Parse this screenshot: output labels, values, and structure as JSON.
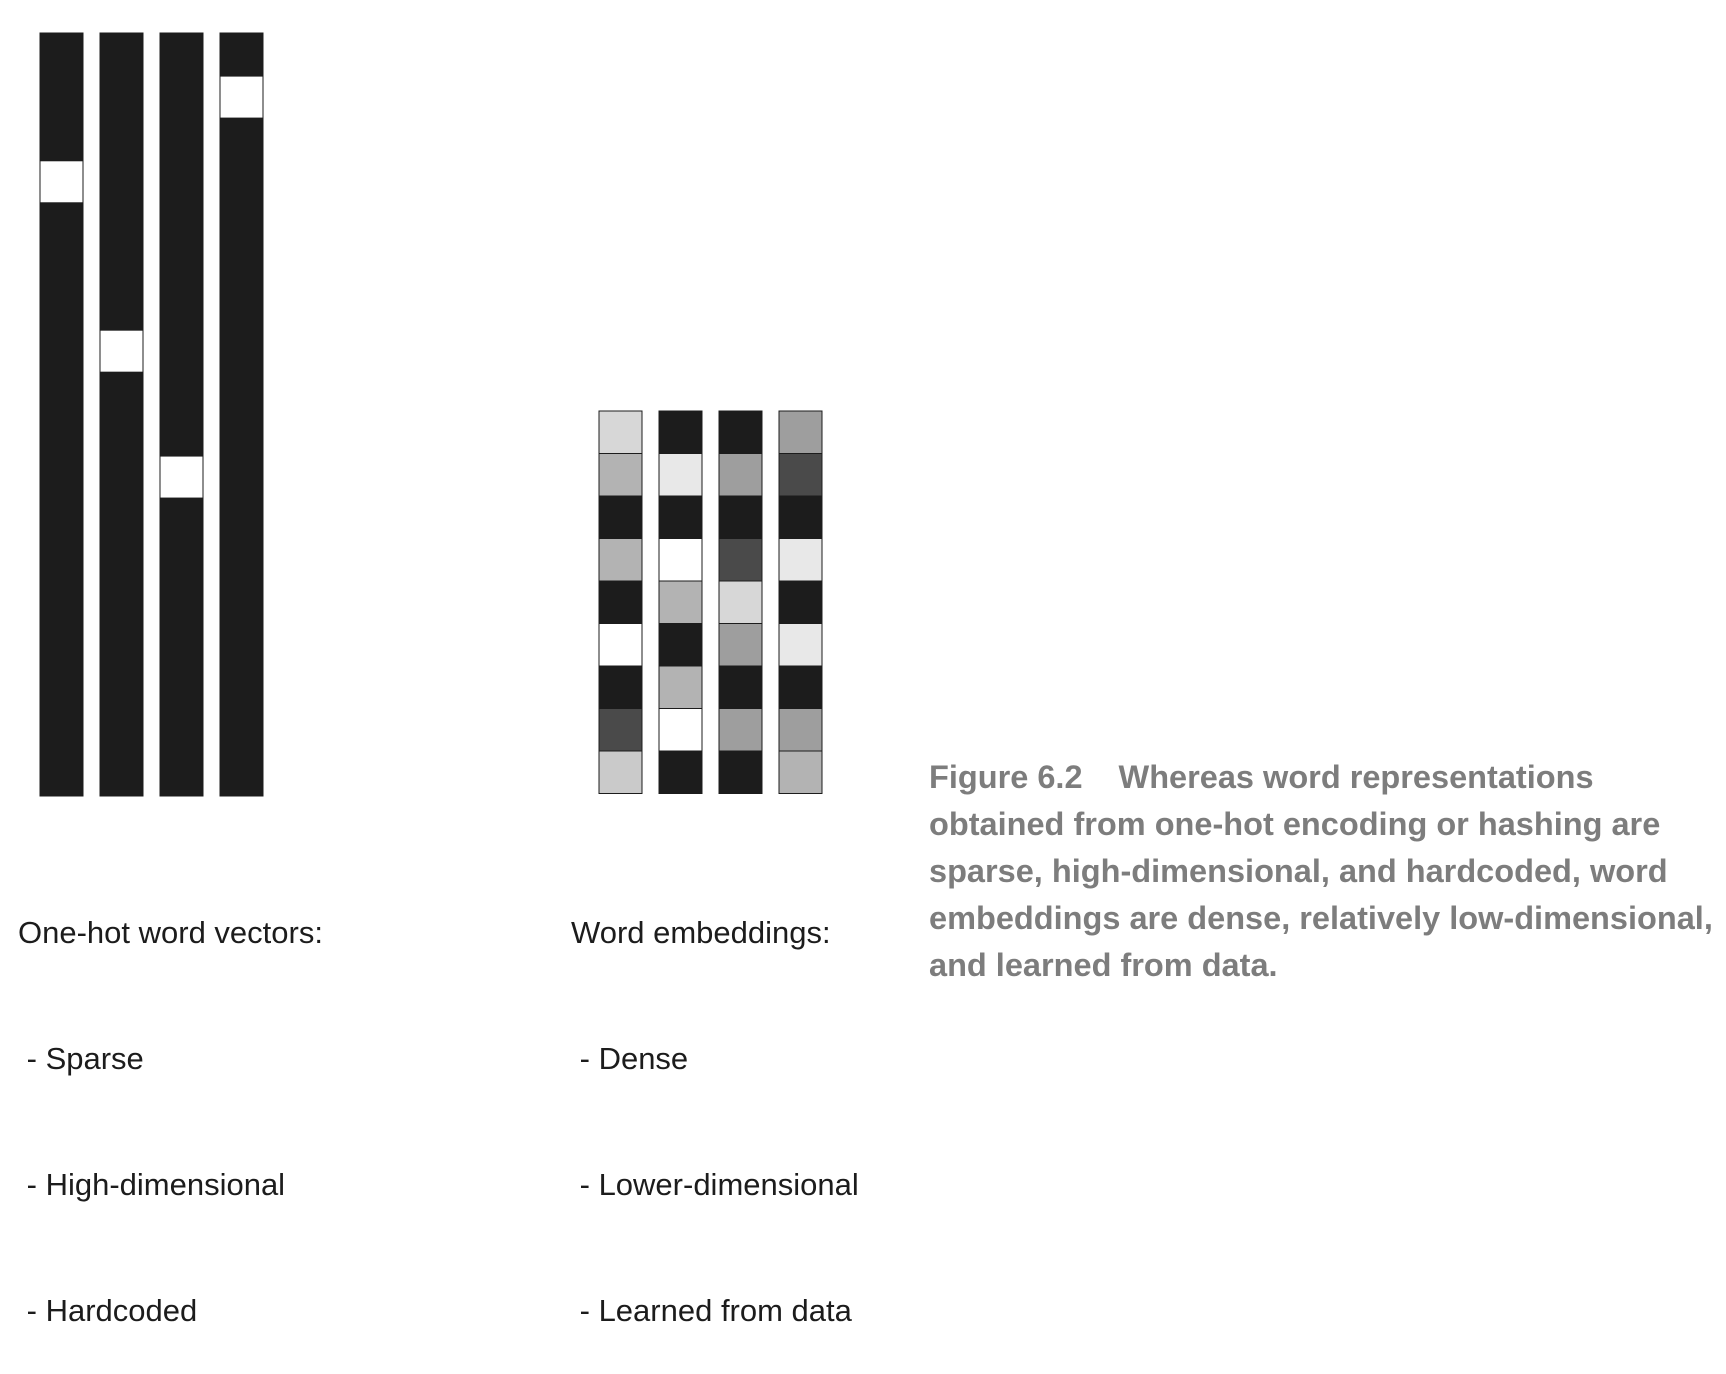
{
  "onehot": {
    "heading": "One-hot word vectors:",
    "properties": [
      "Sparse",
      "High-dimensional",
      "Hardcoded"
    ],
    "vectors": [
      {
        "hot_fraction": 0.195
      },
      {
        "hot_fraction": 0.417
      },
      {
        "hot_fraction": 0.582
      },
      {
        "hot_fraction": 0.084
      }
    ],
    "colors": {
      "cold": "#1c1c1c",
      "hot": "#ffffff"
    }
  },
  "embeddings": {
    "heading": "Word embeddings:",
    "properties": [
      "Dense",
      "Lower-dimensional",
      "Learned from data"
    ],
    "columns": [
      [
        "#d7d7d7",
        "#b3b3b3",
        "#1c1c1c",
        "#b3b3b3",
        "#1c1c1c",
        "#ffffff",
        "#1c1c1c",
        "#4a4a4a",
        "#cacaca"
      ],
      [
        "#1c1c1c",
        "#e8e8e8",
        "#1c1c1c",
        "#ffffff",
        "#b3b3b3",
        "#1c1c1c",
        "#b3b3b3",
        "#ffffff",
        "#1c1c1c"
      ],
      [
        "#1c1c1c",
        "#9e9e9e",
        "#1c1c1c",
        "#4a4a4a",
        "#d7d7d7",
        "#9e9e9e",
        "#1c1c1c",
        "#9e9e9e",
        "#1c1c1c"
      ],
      [
        "#9e9e9e",
        "#4a4a4a",
        "#1c1c1c",
        "#e8e8e8",
        "#1c1c1c",
        "#e8e8e8",
        "#1c1c1c",
        "#9e9e9e",
        "#b3b3b3"
      ]
    ]
  },
  "caption": {
    "figure_number": "Figure 6.2",
    "text": "Whereas word representations obtained from one-hot encoding or hashing are sparse, high-dimensional, and hardcoded, word embeddings are dense, relatively low-dimensional, and learned from data."
  }
}
